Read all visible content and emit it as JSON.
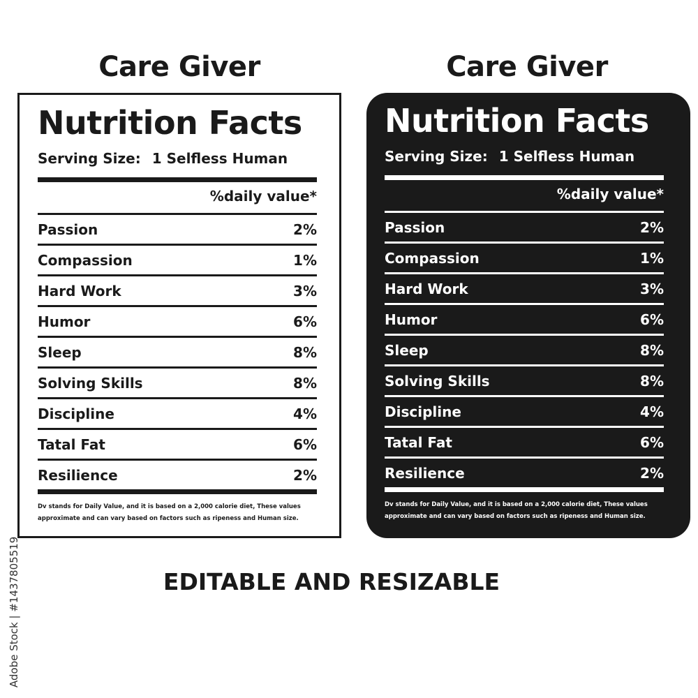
{
  "left_panel": {
    "heading": "Care Giver",
    "title": "Nutrition Facts",
    "serving_label": "Serving Size:",
    "serving_value": "1 Selfless Human",
    "dv_header": "%daily value*",
    "rows": [
      {
        "name": "Passion",
        "value": "2%"
      },
      {
        "name": "Compassion",
        "value": "1%"
      },
      {
        "name": "Hard Work",
        "value": "3%"
      },
      {
        "name": "Humor",
        "value": "6%"
      },
      {
        "name": "Sleep",
        "value": "8%"
      },
      {
        "name": "Solving Skills",
        "value": "8%"
      },
      {
        "name": "Discipline",
        "value": "4%"
      },
      {
        "name": "Tatal Fat",
        "value": "6%"
      },
      {
        "name": "Resilience",
        "value": "2%"
      }
    ],
    "note": "Dv stands for Daily Value, and it is based on a 2,000 calorie diet, These values approximate and can vary based on factors such as ripeness and Human size."
  },
  "right_panel": {
    "heading": "Care Giver",
    "title": "Nutrition Facts",
    "serving_label": "Serving Size:",
    "serving_value": "1 Selfless Human",
    "dv_header": "%daily value*",
    "rows": [
      {
        "name": "Passion",
        "value": "2%"
      },
      {
        "name": "Compassion",
        "value": "1%"
      },
      {
        "name": "Hard Work",
        "value": "3%"
      },
      {
        "name": "Humor",
        "value": "6%"
      },
      {
        "name": "Sleep",
        "value": "8%"
      },
      {
        "name": "Solving Skills",
        "value": "8%"
      },
      {
        "name": "Discipline",
        "value": "4%"
      },
      {
        "name": "Tatal Fat",
        "value": "6%"
      },
      {
        "name": "Resilience",
        "value": "2%"
      }
    ],
    "note": "Dv stands for Daily Value, and it is based on a 2,000 calorie diet, These values approximate and can vary based on factors such as ripeness and Human size."
  },
  "footer": "EDITABLE AND RESIZABLE",
  "credit": "Adobe Stock | #1437805519",
  "colors": {
    "ink": "#1a1a1a",
    "paper": "#ffffff"
  }
}
